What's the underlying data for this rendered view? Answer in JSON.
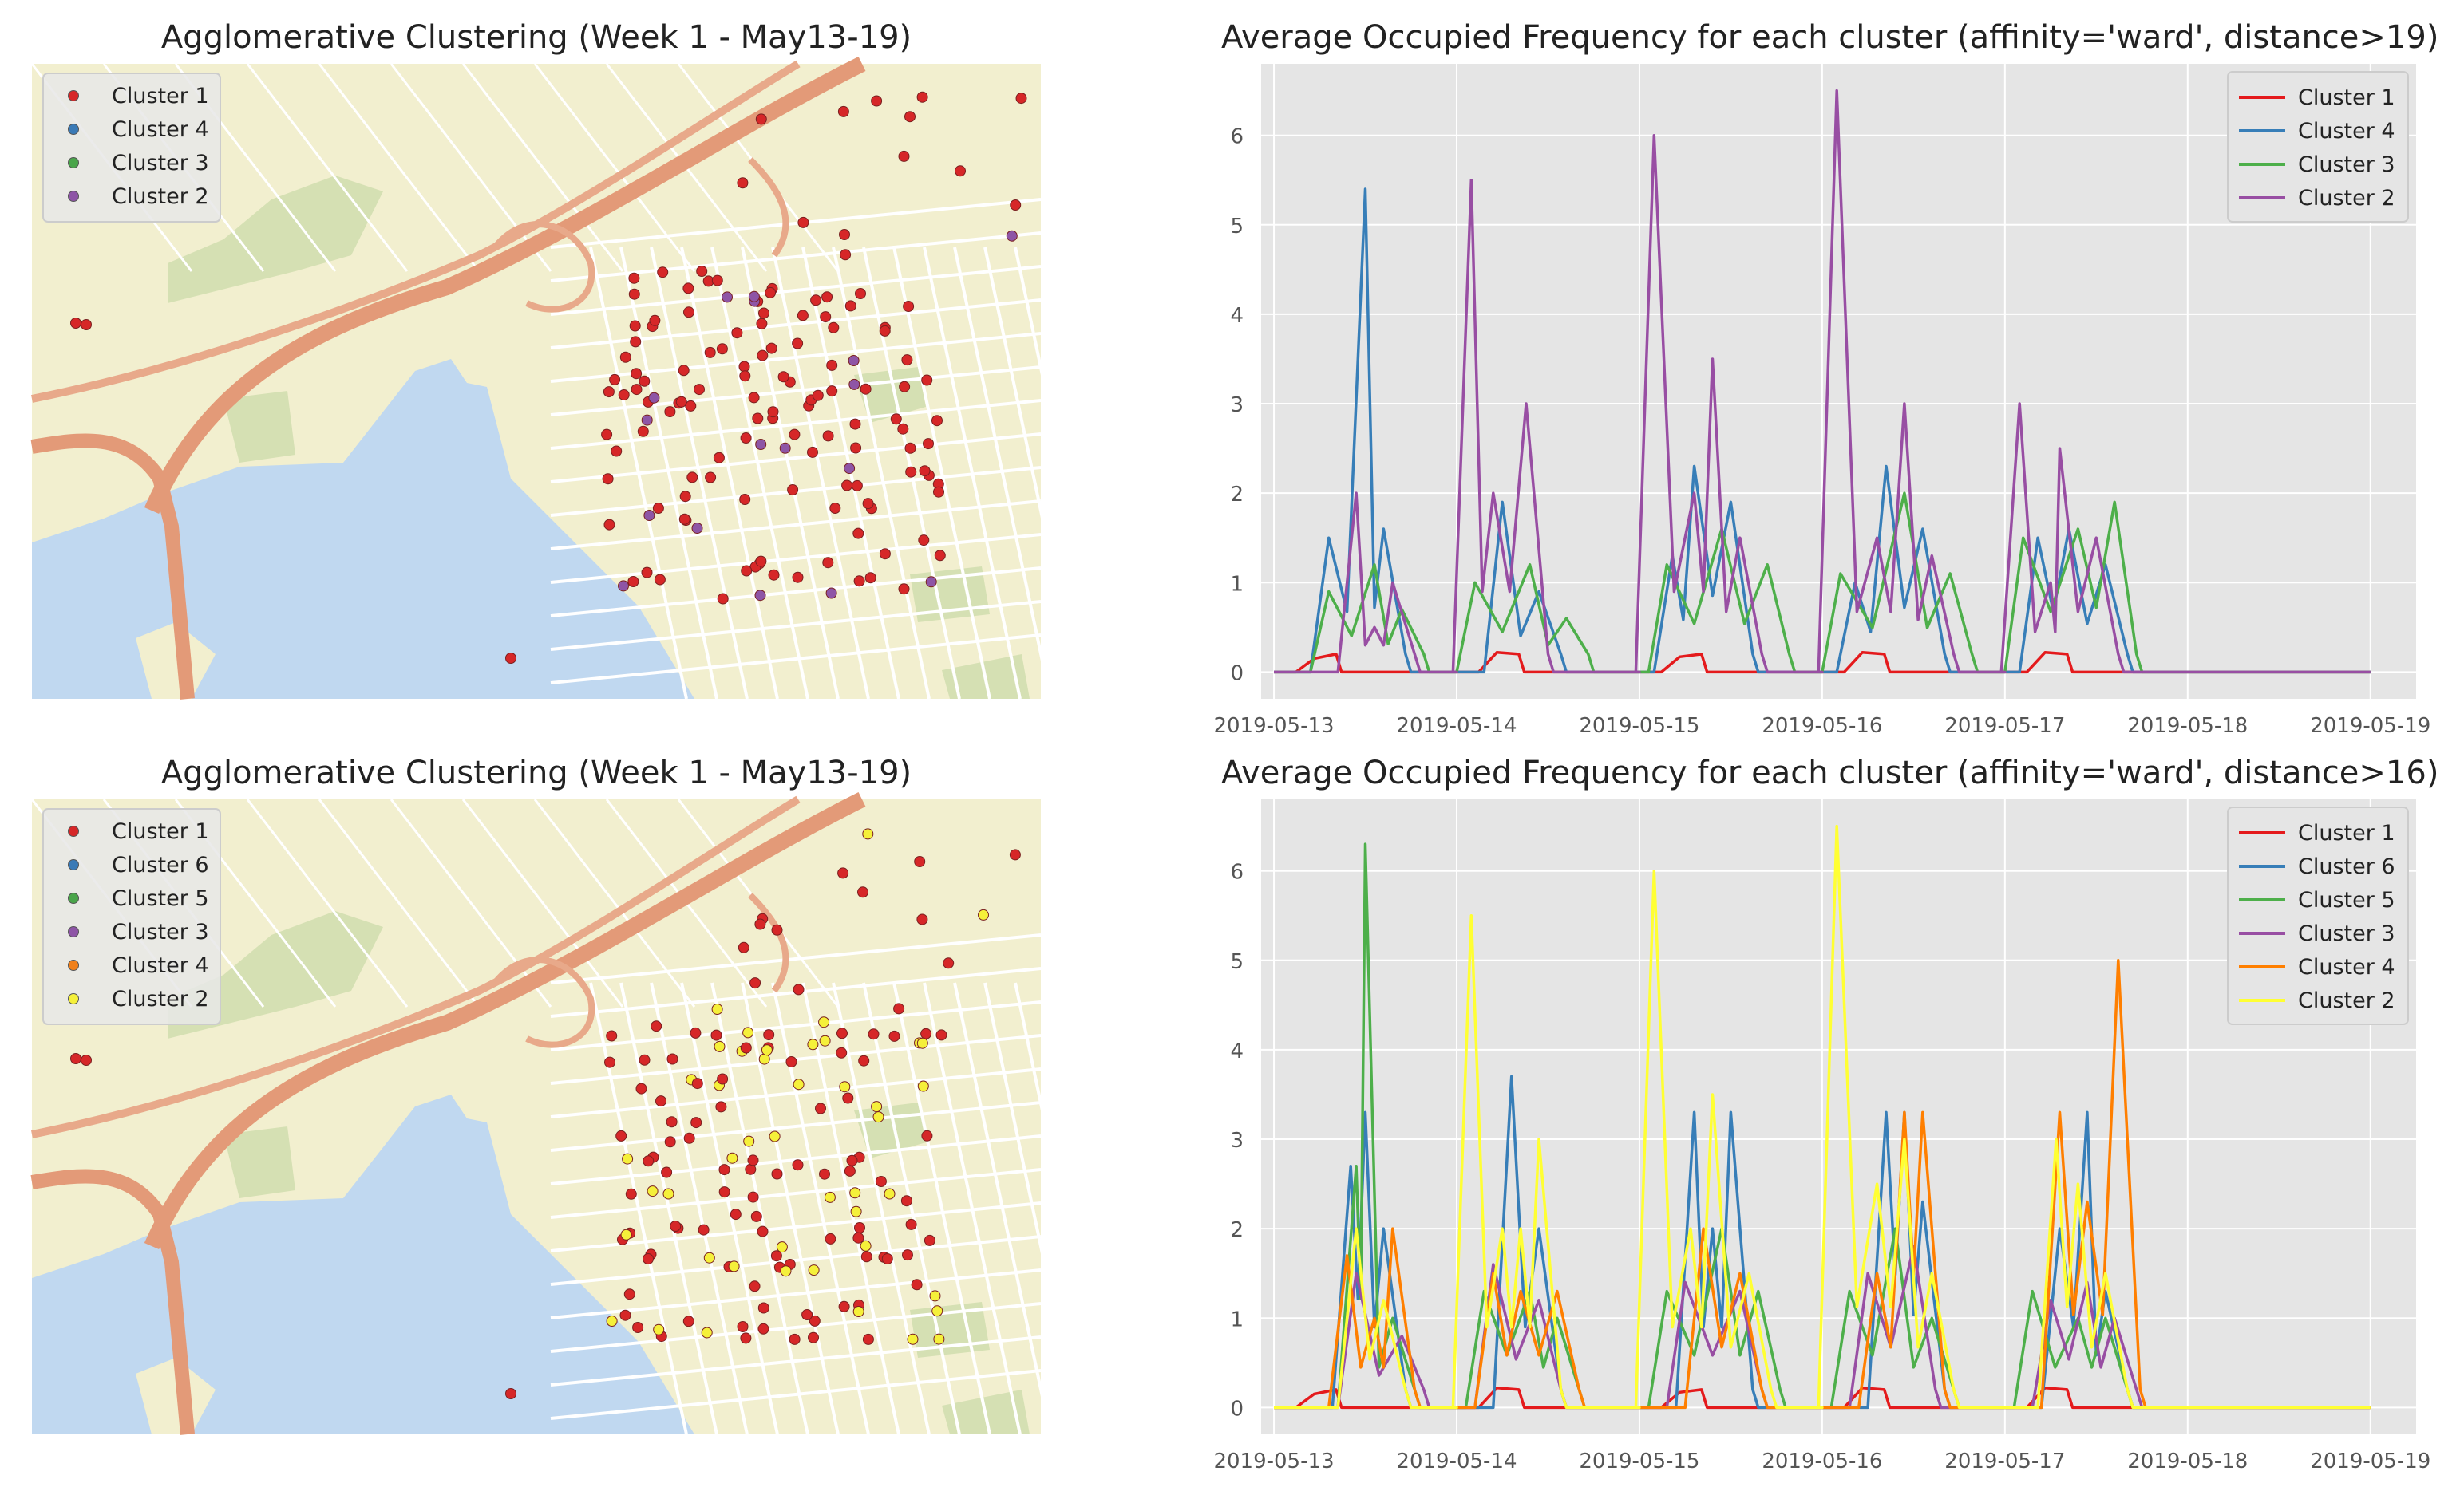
{
  "chart_data": [
    {
      "type": "scatter",
      "panel": "map-top",
      "title": "Agglomerative Clustering (Week 1 - May13-19)",
      "legend_position": "top-left",
      "legend": [
        {
          "label": "Cluster 1",
          "color": "#d62728"
        },
        {
          "label": "Cluster 4",
          "color": "#3a7ab6"
        },
        {
          "label": "Cluster 3",
          "color": "#4aa54a"
        },
        {
          "label": "Cluster 2",
          "color": "#8e55a6"
        }
      ],
      "background": "street map (basemap)"
    },
    {
      "type": "line",
      "panel": "line-top",
      "title": "Average Occupied Frequency for each cluster (affinity='ward', distance>19)",
      "xlabel": "",
      "ylabel": "",
      "ylim": [
        -0.3,
        6.8
      ],
      "yticks": [
        "0",
        "1",
        "2",
        "3",
        "4",
        "5",
        "6"
      ],
      "xticks": [
        "2019-05-13",
        "2019-05-14",
        "2019-05-15",
        "2019-05-16",
        "2019-05-17",
        "2019-05-18",
        "2019-05-19"
      ],
      "legend_position": "top-right",
      "series": [
        {
          "name": "Cluster 1",
          "color": "#e41a1c",
          "peaks": [
            [
              0.22,
              0.15
            ],
            [
              1.22,
              0.22
            ],
            [
              2.22,
              0.17
            ],
            [
              3.22,
              0.22
            ],
            [
              4.22,
              0.22
            ]
          ]
        },
        {
          "name": "Cluster 4",
          "color": "#377eb8",
          "peaks": [
            [
              0.5,
              5.4
            ],
            [
              0.3,
              1.5
            ],
            [
              0.6,
              1.6
            ],
            [
              1.25,
              1.9
            ],
            [
              1.45,
              0.9
            ],
            [
              2.3,
              2.3
            ],
            [
              2.5,
              1.9
            ],
            [
              2.18,
              1.3
            ],
            [
              3.35,
              2.3
            ],
            [
              3.55,
              1.6
            ],
            [
              3.18,
              1.0
            ],
            [
              4.35,
              1.6
            ],
            [
              4.55,
              1.2
            ],
            [
              4.18,
              1.5
            ]
          ]
        },
        {
          "name": "Cluster 3",
          "color": "#4daf4a",
          "peaks": [
            [
              0.3,
              0.9
            ],
            [
              0.55,
              1.2
            ],
            [
              0.7,
              0.7
            ],
            [
              1.1,
              1.0
            ],
            [
              1.4,
              1.2
            ],
            [
              1.6,
              0.6
            ],
            [
              2.15,
              1.2
            ],
            [
              2.45,
              1.6
            ],
            [
              2.7,
              1.2
            ],
            [
              3.1,
              1.1
            ],
            [
              3.45,
              2.0
            ],
            [
              3.7,
              1.1
            ],
            [
              4.1,
              1.5
            ],
            [
              4.4,
              1.6
            ],
            [
              4.6,
              1.9
            ]
          ]
        },
        {
          "name": "Cluster 2",
          "color": "#984ea3",
          "peaks": [
            [
              0.45,
              2.0
            ],
            [
              0.65,
              1.0
            ],
            [
              0.55,
              0.5
            ],
            [
              1.08,
              5.5
            ],
            [
              1.2,
              2.0
            ],
            [
              1.38,
              3.0
            ],
            [
              2.08,
              6.0
            ],
            [
              2.3,
              2.0
            ],
            [
              2.4,
              3.5
            ],
            [
              2.55,
              1.5
            ],
            [
              3.08,
              6.5
            ],
            [
              3.3,
              1.5
            ],
            [
              3.45,
              3.0
            ],
            [
              3.6,
              1.3
            ],
            [
              4.08,
              3.0
            ],
            [
              4.25,
              1.0
            ],
            [
              4.3,
              2.5
            ],
            [
              4.5,
              1.5
            ]
          ]
        }
      ]
    },
    {
      "type": "scatter",
      "panel": "map-bottom",
      "title": "Agglomerative Clustering (Week 1 - May13-19)",
      "legend_position": "top-left",
      "legend": [
        {
          "label": "Cluster 1",
          "color": "#d62728"
        },
        {
          "label": "Cluster 6",
          "color": "#3a7ab6"
        },
        {
          "label": "Cluster 5",
          "color": "#4aa54a"
        },
        {
          "label": "Cluster 3",
          "color": "#8e55a6"
        },
        {
          "label": "Cluster 4",
          "color": "#f0801a"
        },
        {
          "label": "Cluster 2",
          "color": "#f5f03a"
        }
      ],
      "background": "street map (basemap)"
    },
    {
      "type": "line",
      "panel": "line-bottom",
      "title": "Average Occupied Frequency for each cluster (affinity='ward', distance>16)",
      "xlabel": "",
      "ylabel": "",
      "ylim": [
        -0.3,
        6.8
      ],
      "yticks": [
        "0",
        "1",
        "2",
        "3",
        "4",
        "5",
        "6"
      ],
      "xticks": [
        "2019-05-13",
        "2019-05-14",
        "2019-05-15",
        "2019-05-16",
        "2019-05-17",
        "2019-05-18",
        "2019-05-19"
      ],
      "legend_position": "top-right",
      "series": [
        {
          "name": "Cluster 1",
          "color": "#e41a1c",
          "peaks": [
            [
              0.22,
              0.15
            ],
            [
              1.22,
              0.22
            ],
            [
              2.22,
              0.17
            ],
            [
              3.22,
              0.22
            ],
            [
              4.22,
              0.22
            ]
          ]
        },
        {
          "name": "Cluster 6",
          "color": "#377eb8",
          "peaks": [
            [
              0.42,
              2.7
            ],
            [
              0.5,
              3.3
            ],
            [
              0.6,
              2.0
            ],
            [
              1.3,
              3.7
            ],
            [
              1.45,
              2.0
            ],
            [
              2.3,
              3.3
            ],
            [
              2.5,
              3.3
            ],
            [
              2.4,
              2.0
            ],
            [
              3.35,
              3.3
            ],
            [
              3.55,
              2.3
            ],
            [
              3.45,
              3.3
            ],
            [
              4.45,
              3.3
            ],
            [
              4.3,
              2.0
            ],
            [
              4.55,
              1.3
            ]
          ]
        },
        {
          "name": "Cluster 5",
          "color": "#4daf4a",
          "peaks": [
            [
              0.5,
              6.3
            ],
            [
              0.45,
              2.7
            ],
            [
              0.65,
              1.0
            ],
            [
              1.15,
              1.3
            ],
            [
              1.4,
              1.3
            ],
            [
              1.55,
              1.0
            ],
            [
              2.15,
              1.3
            ],
            [
              2.45,
              2.0
            ],
            [
              2.65,
              1.3
            ],
            [
              3.15,
              1.3
            ],
            [
              3.4,
              2.0
            ],
            [
              3.6,
              1.0
            ],
            [
              4.15,
              1.3
            ],
            [
              4.4,
              1.0
            ],
            [
              4.55,
              1.0
            ]
          ]
        },
        {
          "name": "Cluster 3",
          "color": "#984ea3",
          "peaks": [
            [
              0.45,
              1.5
            ],
            [
              0.7,
              0.8
            ],
            [
              1.2,
              1.6
            ],
            [
              1.45,
              1.2
            ],
            [
              2.25,
              1.4
            ],
            [
              2.55,
              1.3
            ],
            [
              3.25,
              1.5
            ],
            [
              3.5,
              1.8
            ],
            [
              4.25,
              1.2
            ],
            [
              4.45,
              1.4
            ],
            [
              4.6,
              1.0
            ]
          ]
        },
        {
          "name": "Cluster 4",
          "color": "#ff7f00",
          "peaks": [
            [
              0.4,
              1.7
            ],
            [
              0.65,
              2.0
            ],
            [
              0.55,
              1.0
            ],
            [
              1.2,
              1.5
            ],
            [
              1.35,
              1.3
            ],
            [
              1.55,
              1.3
            ],
            [
              2.35,
              2.0
            ],
            [
              2.55,
              1.5
            ],
            [
              3.3,
              1.5
            ],
            [
              3.45,
              3.3
            ],
            [
              3.55,
              3.3
            ],
            [
              4.3,
              3.3
            ],
            [
              4.45,
              2.3
            ],
            [
              4.62,
              5.0
            ]
          ]
        },
        {
          "name": "Cluster 2",
          "color": "#ffff33",
          "peaks": [
            [
              0.45,
              2.0
            ],
            [
              0.6,
              1.2
            ],
            [
              1.08,
              5.5
            ],
            [
              1.25,
              2.0
            ],
            [
              1.35,
              2.0
            ],
            [
              1.45,
              3.0
            ],
            [
              2.08,
              6.0
            ],
            [
              2.28,
              2.0
            ],
            [
              2.4,
              3.5
            ],
            [
              2.6,
              1.5
            ],
            [
              3.08,
              6.5
            ],
            [
              3.3,
              2.5
            ],
            [
              3.45,
              3.0
            ],
            [
              3.6,
              1.5
            ],
            [
              4.28,
              3.0
            ],
            [
              4.4,
              2.5
            ],
            [
              4.55,
              1.5
            ]
          ]
        }
      ]
    }
  ]
}
